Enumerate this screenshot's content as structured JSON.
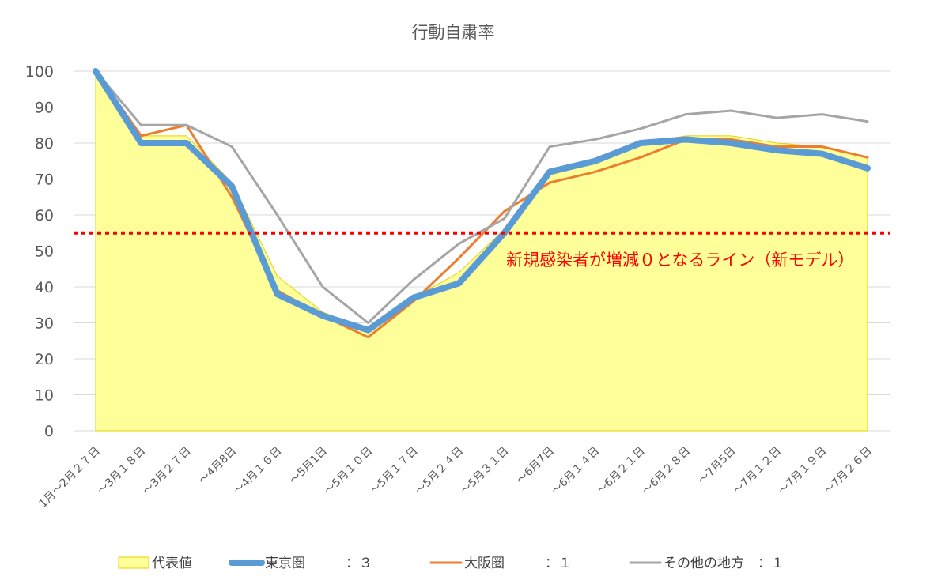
{
  "chart_data": {
    "type": "line",
    "title": "行動自粛率",
    "categories": [
      "1月～2月27日",
      "～3月18日",
      "～3月27日",
      "～4月8日",
      "～4月16日",
      "～5月1日",
      "～5月10日",
      "～5月17日",
      "～5月24日",
      "～5月31日",
      "～6月7日",
      "～6月14日",
      "～6月21日",
      "～6月28日",
      "～7月5日",
      "～7月12日",
      "～7月19日",
      "～7月26日"
    ],
    "category_labels": [
      "1月～2月２７日",
      "～3月１８日",
      "～3月２７日",
      "～4月8日",
      "～4月１６日",
      "～5月1日",
      "～5月１０日",
      "～5月１７日",
      "～5月２４日",
      "～5月３１日",
      "～6月7日",
      "～6月１４日",
      "～6月２１日",
      "～6月２８日",
      "～7月5日",
      "～7月１２日",
      "～7月１９日",
      "～7月２６日"
    ],
    "ylim": [
      0,
      100
    ],
    "yticks": [
      0,
      10,
      20,
      30,
      40,
      50,
      60,
      70,
      80,
      90,
      100
    ],
    "grid": true,
    "legend_position": "bottom",
    "series": [
      {
        "name": "代表値",
        "legend_label": "代表値",
        "type": "area",
        "color": "#ffff99",
        "edge_color": "#e6d200",
        "values": [
          100,
          82,
          82,
          69,
          43,
          33,
          28,
          37,
          44,
          56,
          71,
          75,
          80,
          82,
          82,
          80,
          79,
          76
        ]
      },
      {
        "name": "東京圏",
        "legend_label": "東京圏　　　：３",
        "weight": 3,
        "color": "#5b9bd5",
        "values": [
          100,
          80,
          80,
          68,
          38,
          32,
          28,
          37,
          41,
          55,
          72,
          75,
          80,
          81,
          80,
          78,
          77,
          73
        ]
      },
      {
        "name": "大阪圏",
        "legend_label": "大阪圏　　　：１",
        "weight": 1,
        "color": "#ed7d31",
        "values": [
          100,
          82,
          85,
          65,
          39,
          32,
          26,
          36,
          48,
          61,
          69,
          72,
          76,
          81,
          81,
          79,
          79,
          76
        ]
      },
      {
        "name": "その他の地方",
        "legend_label": "その他の地方　：１",
        "weight": 1,
        "color": "#a5a5a5",
        "values": [
          100,
          85,
          85,
          79,
          60,
          40,
          30,
          42,
          52,
          59,
          79,
          81,
          84,
          88,
          89,
          87,
          88,
          86
        ]
      }
    ],
    "reference_line": {
      "value": 55,
      "color": "#ff0000",
      "style": "dotted",
      "label": "新規感染者が増減０となるライン（新モデル）"
    }
  }
}
